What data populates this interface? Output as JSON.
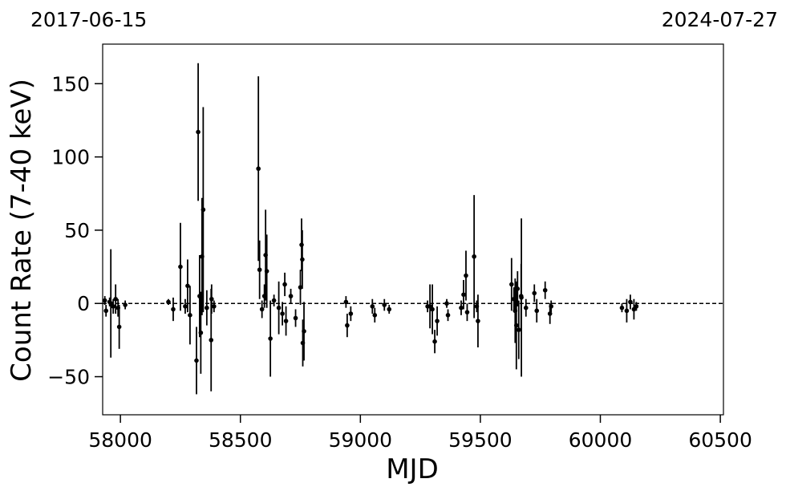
{
  "chart_data": {
    "type": "errorbar",
    "xlabel": "MJD",
    "ylabel": "Count Rate (7-40 keV)",
    "top_left_label": "2017-06-15",
    "top_right_label": "2024-07-27",
    "xlim": [
      57926,
      60513
    ],
    "ylim": [
      -76,
      177
    ],
    "xticks": [
      58000,
      58500,
      59000,
      59500,
      60000,
      60500
    ],
    "yticks": [
      {
        "value": -50,
        "label": "−50"
      },
      0,
      50,
      100,
      150
    ],
    "hline": 0,
    "color": "#000000",
    "x": [
      57935,
      57940,
      57955,
      57960,
      57970,
      57980,
      57990,
      57995,
      58020,
      58200,
      58220,
      58250,
      58270,
      58280,
      58290,
      58317,
      58324,
      58330,
      58335,
      58340,
      58345,
      58360,
      58378,
      58380,
      58390,
      58575,
      58580,
      58590,
      58600,
      58605,
      58610,
      58625,
      58640,
      58660,
      58675,
      58685,
      58690,
      58710,
      58730,
      58750,
      58755,
      58758,
      58760,
      58765,
      58940,
      58945,
      58960,
      59050,
      59060,
      59100,
      59120,
      59280,
      59290,
      59300,
      59310,
      59320,
      59360,
      59365,
      59420,
      59430,
      59440,
      59445,
      59474,
      59485,
      59490,
      59630,
      59640,
      59645,
      59650,
      59655,
      59660,
      59670,
      59671,
      59690,
      59725,
      59735,
      59770,
      59790,
      59795,
      60090,
      60110,
      60125,
      60140,
      60150
    ],
    "values": [
      2,
      -5,
      1,
      0,
      -2,
      3,
      -3,
      -16,
      -1,
      1,
      -4,
      25,
      -2,
      12,
      -8,
      -39,
      117,
      5,
      -20,
      32,
      64,
      -3,
      -25,
      3,
      -2,
      92,
      23,
      -4,
      5,
      33,
      22,
      -24,
      2,
      -3,
      -7,
      13,
      -12,
      5,
      -10,
      11,
      40,
      30,
      -27,
      -19,
      1,
      -15,
      -7,
      -2,
      -8,
      -1,
      -4,
      -2,
      -2,
      -4,
      -26,
      -12,
      0,
      -8,
      -3,
      6,
      19,
      -6,
      32,
      -2,
      -12,
      13,
      3,
      -5,
      -15,
      10,
      -18,
      5,
      4,
      -3,
      7,
      -5,
      9,
      -7,
      -2,
      -3,
      -5,
      1,
      -4,
      -2
    ],
    "errors": [
      3,
      4,
      3,
      37,
      5,
      10,
      6,
      15,
      3,
      2,
      8,
      30,
      5,
      18,
      20,
      23,
      47,
      28,
      28,
      40,
      70,
      12,
      35,
      10,
      4,
      63,
      20,
      6,
      8,
      31,
      25,
      26,
      4,
      18,
      8,
      8,
      10,
      5,
      6,
      12,
      18,
      20,
      16,
      20,
      4,
      8,
      5,
      5,
      5,
      4,
      3,
      4,
      15,
      17,
      8,
      10,
      3,
      4,
      5,
      10,
      17,
      6,
      42,
      4,
      18,
      18,
      8,
      22,
      30,
      12,
      20,
      22,
      54,
      6,
      6,
      8,
      6,
      7,
      4,
      3,
      8,
      5,
      7,
      3
    ]
  }
}
